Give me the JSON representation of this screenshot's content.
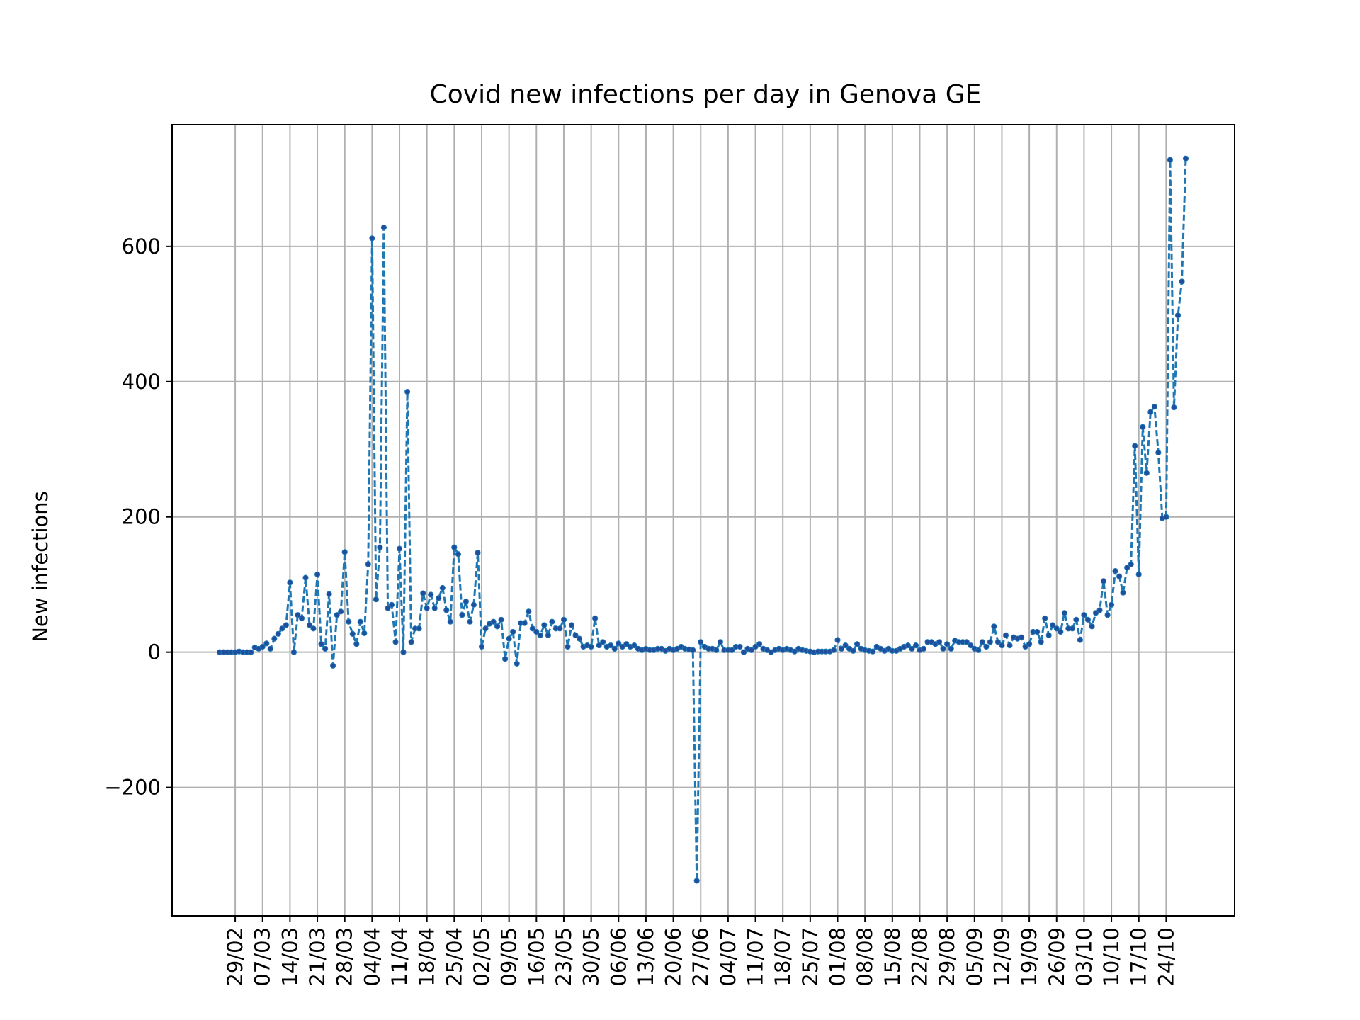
{
  "chart_data": {
    "type": "line",
    "title": "Covid new infections per day in Genova GE",
    "xlabel": "",
    "ylabel": "New infections",
    "ylim": [
      -390,
      780
    ],
    "grid": true,
    "legend": "none",
    "line_style": "dashed",
    "marker": "dot",
    "colors": {
      "line": "#1f77b4",
      "marker": "#1f4e9c",
      "grid": "#b0b0b0"
    },
    "y_ticks": [
      {
        "value": -200,
        "label": "−200"
      },
      {
        "value": 0,
        "label": "0"
      },
      {
        "value": 200,
        "label": "200"
      },
      {
        "value": 400,
        "label": "400"
      },
      {
        "value": 600,
        "label": "600"
      }
    ],
    "x_tick_labels": [
      "29/02",
      "07/03",
      "14/03",
      "21/03",
      "28/03",
      "04/04",
      "11/04",
      "18/04",
      "25/04",
      "02/05",
      "09/05",
      "16/05",
      "23/05",
      "30/05",
      "06/06",
      "13/06",
      "20/06",
      "27/06",
      "04/07",
      "11/07",
      "18/07",
      "25/07",
      "01/08",
      "08/08",
      "15/08",
      "22/08",
      "29/08",
      "05/09",
      "12/09",
      "19/09",
      "26/09",
      "03/10",
      "10/10",
      "17/10",
      "24/10"
    ],
    "x_tick_first_index": 4,
    "x_tick_step": 7,
    "x_start_date": "25/02",
    "x_end_date": "24/10",
    "series": [
      {
        "values": [
          0,
          0,
          0,
          0,
          0,
          1,
          0,
          0,
          0,
          7,
          5,
          8,
          13,
          5,
          20,
          27,
          35,
          40,
          103,
          0,
          55,
          50,
          110,
          40,
          35,
          115,
          12,
          5,
          86,
          -20,
          55,
          60,
          148,
          45,
          27,
          12,
          45,
          28,
          130,
          612,
          78,
          155,
          628,
          65,
          70,
          15,
          153,
          0,
          385,
          15,
          35,
          35,
          87,
          65,
          85,
          65,
          80,
          95,
          62,
          45,
          155,
          145,
          55,
          75,
          45,
          70,
          147,
          8,
          35,
          42,
          45,
          38,
          48,
          -10,
          20,
          30,
          -17,
          43,
          43,
          60,
          35,
          30,
          25,
          40,
          25,
          45,
          35,
          35,
          48,
          8,
          40,
          25,
          20,
          8,
          10,
          8,
          50,
          10,
          15,
          8,
          10,
          5,
          13,
          8,
          12,
          8,
          10,
          5,
          3,
          5,
          3,
          3,
          5,
          5,
          2,
          5,
          3,
          5,
          8,
          5,
          4,
          3,
          -338,
          15,
          8,
          5,
          5,
          3,
          15,
          3,
          3,
          3,
          8,
          8,
          0,
          5,
          3,
          8,
          12,
          5,
          3,
          0,
          3,
          5,
          3,
          5,
          3,
          1,
          5,
          3,
          2,
          1,
          0,
          1,
          1,
          1,
          1,
          3,
          18,
          5,
          10,
          5,
          2,
          12,
          5,
          3,
          2,
          1,
          8,
          5,
          2,
          5,
          2,
          2,
          5,
          8,
          10,
          5,
          10,
          3,
          5,
          15,
          15,
          12,
          15,
          5,
          12,
          5,
          17,
          15,
          15,
          15,
          10,
          5,
          3,
          15,
          8,
          15,
          38,
          15,
          10,
          25,
          10,
          22,
          20,
          22,
          8,
          12,
          30,
          30,
          15,
          50,
          25,
          40,
          35,
          30,
          58,
          35,
          35,
          48,
          18,
          55,
          48,
          38,
          58,
          62,
          105,
          55,
          70,
          120,
          112,
          88,
          125,
          130,
          305,
          115,
          333,
          265,
          355,
          363,
          295,
          198,
          200,
          728,
          362,
          498,
          548,
          730
        ]
      }
    ]
  }
}
